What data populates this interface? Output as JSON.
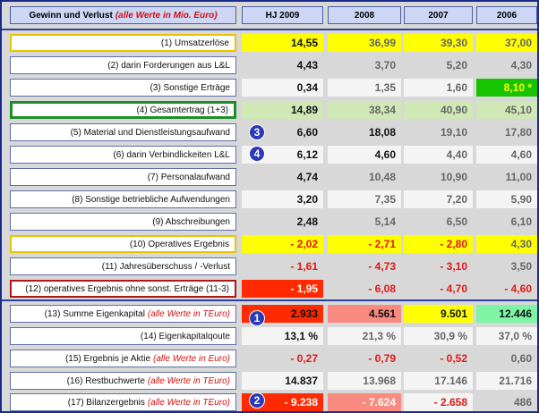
{
  "header": {
    "title": "Gewinn und Verlust",
    "title_note": "(alle Werte in Mio. Euro)",
    "years": [
      "HJ 2009",
      "2008",
      "2007",
      "2006"
    ]
  },
  "rows": [
    {
      "label": "(1) Umsatzerlöse",
      "note": "",
      "values": [
        "14,55",
        "36,99",
        "39,30",
        "37,00"
      ]
    },
    {
      "label": "(2) darin Forderungen aus L&L",
      "note": "",
      "values": [
        "4,43",
        "3,70",
        "5,20",
        "4,30"
      ]
    },
    {
      "label": "(3) Sonstige Erträge",
      "note": "",
      "values": [
        "0,34",
        "1,35",
        "1,60",
        "8,10 *"
      ]
    },
    {
      "label": "(4) Gesamtertrag (1+3)",
      "note": "",
      "values": [
        "14,89",
        "38,34",
        "40,90",
        "45,10"
      ]
    },
    {
      "label": "(5) Material und Dienstleistungsaufwand",
      "note": "",
      "values": [
        "6,60",
        "18,08",
        "19,10",
        "17,80"
      ]
    },
    {
      "label": "(6) darin Verbindlickeiten L&L",
      "note": "",
      "values": [
        "6,12",
        "4,60",
        "4,40",
        "4,60"
      ]
    },
    {
      "label": "(7) Personalaufwand",
      "note": "",
      "values": [
        "4,74",
        "10,48",
        "10,90",
        "11,00"
      ]
    },
    {
      "label": "(8) Sonstige betriebliche Aufwendungen",
      "note": "",
      "values": [
        "3,20",
        "7,35",
        "7,20",
        "5,90"
      ]
    },
    {
      "label": "(9) Abschreibungen",
      "note": "",
      "values": [
        "2,48",
        "5,14",
        "6,50",
        "6,10"
      ]
    },
    {
      "label": "(10) Operatives Ergebnis",
      "note": "",
      "values": [
        "- 2,02",
        "- 2,71",
        "- 2,80",
        "4,30"
      ]
    },
    {
      "label": "(11) Jahresüberschuss / -Verlust",
      "note": "",
      "values": [
        "- 1,61",
        "- 4,73",
        "- 3,10",
        "3,50"
      ]
    },
    {
      "label": "(12) operatives Ergebnis ohne sonst. Erträge (11-3)",
      "note": "",
      "values": [
        "- 1,95",
        "- 6,08",
        "- 4,70",
        "- 4,60"
      ]
    },
    {
      "label": "(13) Summe Eigenkapital",
      "note": "(alle Werte in TEuro)",
      "values": [
        "2.933",
        "4.561",
        "9.501",
        "12.446"
      ]
    },
    {
      "label": "(14) Eigenkapitalqoute",
      "note": "",
      "values": [
        "13,1 %",
        "21,3 %",
        "30,9 %",
        "37,0 %"
      ]
    },
    {
      "label": "(15) Ergebnis je Aktie",
      "note": "(alle Werte in Euro)",
      "values": [
        "- 0,27",
        "- 0,79",
        "- 0,52",
        "0,60"
      ]
    },
    {
      "label": "(16) Restbuchwerte",
      "note": "(alle Werte in TEuro)",
      "values": [
        "14.837",
        "13.968",
        "17.146",
        "21.716"
      ]
    },
    {
      "label": "(17) Bilanzergebnis",
      "note": "(alle Werte in TEuro)",
      "values": [
        "- 9.238",
        "- 7.624",
        "- 2.658",
        "486"
      ]
    }
  ],
  "badges": [
    "1",
    "2",
    "3",
    "4"
  ],
  "colors": {
    "frame": "#1a2c8a",
    "highlight_yellow": "#ffff00",
    "highlight_red": "#ff2a00",
    "highlight_green": "#17c400",
    "negative_text": "#e01818"
  }
}
